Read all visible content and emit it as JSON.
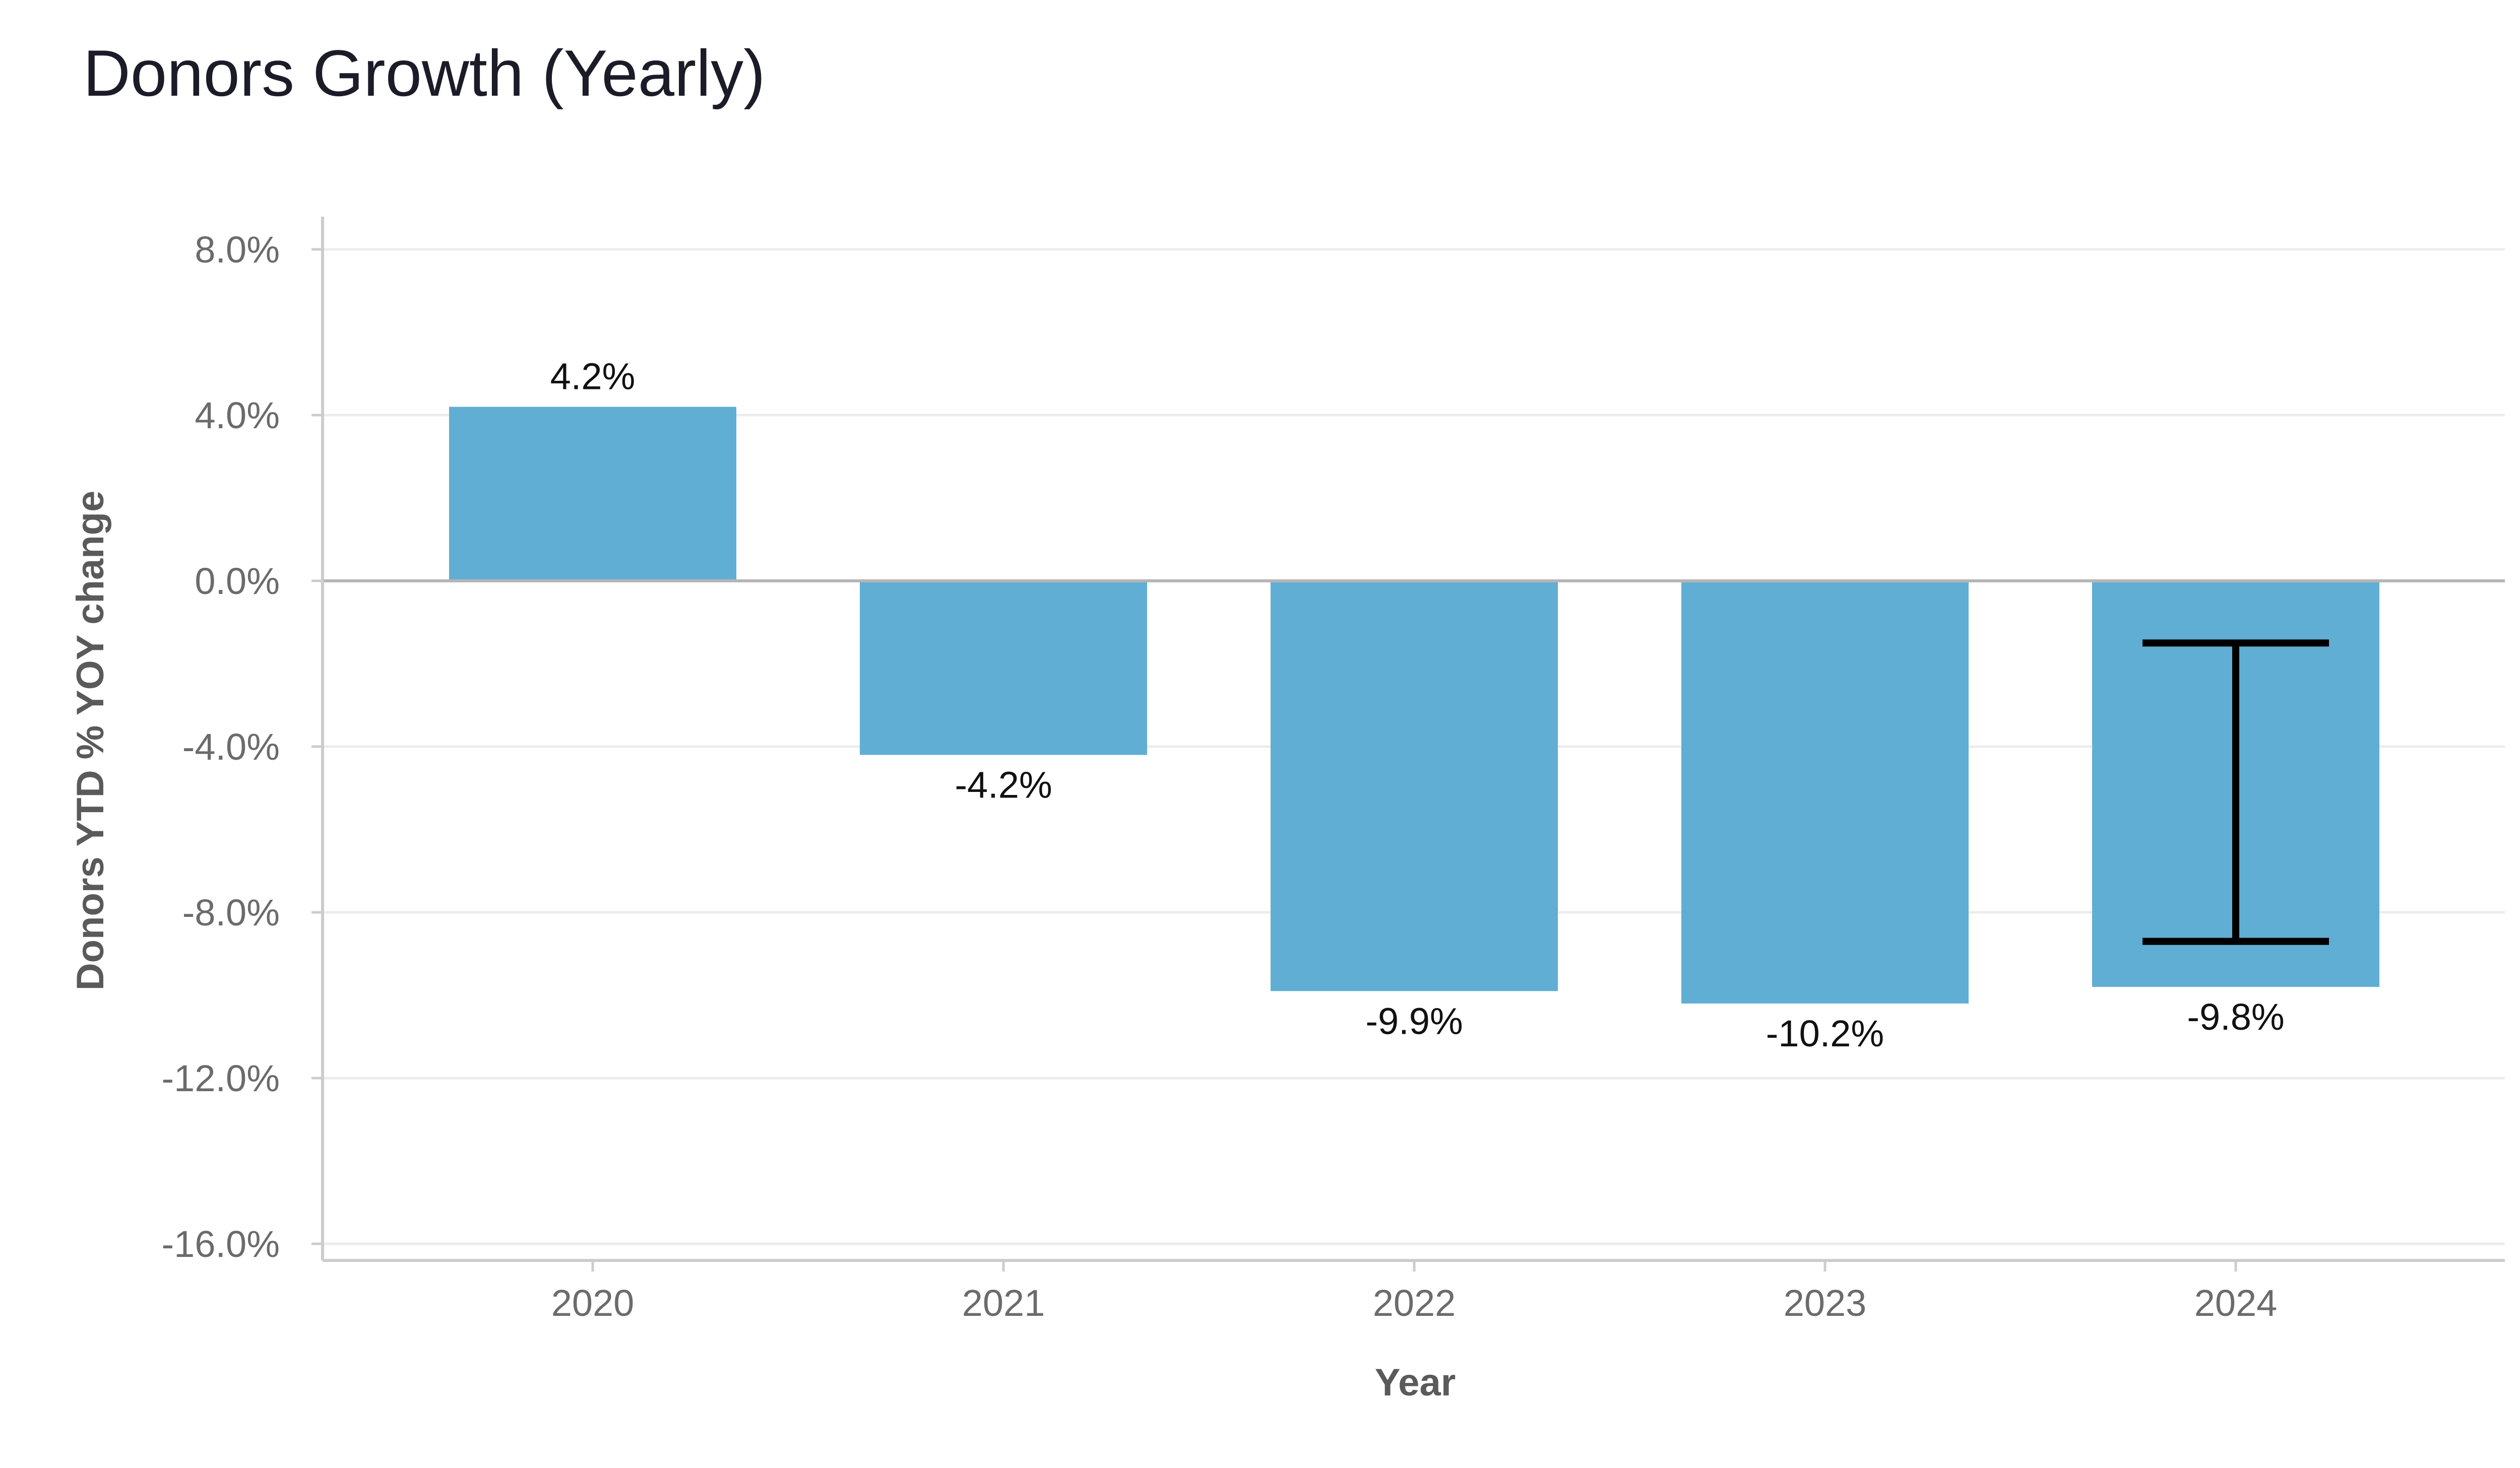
{
  "title": "Donors Growth (Yearly)",
  "chart_data": {
    "type": "bar",
    "title": "Donors Growth (Yearly)",
    "xlabel": "Year",
    "ylabel": "Donors YTD % YOY change",
    "categories": [
      "2020",
      "2021",
      "2022",
      "2023",
      "2024"
    ],
    "values": [
      4.2,
      -4.2,
      -9.9,
      -10.2,
      -9.8
    ],
    "data_labels": [
      "4.2%",
      "-4.2%",
      "-9.9%",
      "-10.2%",
      "-9.8%"
    ],
    "error_bars": [
      {
        "category": "2024",
        "low": -8.7,
        "high": -1.5
      }
    ],
    "ylim": [
      -16.0,
      8.0
    ],
    "yticks": [
      8.0,
      4.0,
      0.0,
      -4.0,
      -8.0,
      -12.0,
      -16.0
    ],
    "ytick_labels": [
      "8.0%",
      "4.0%",
      "0.0%",
      "-4.0%",
      "-8.0%",
      "-12.0%",
      "-16.0%"
    ],
    "grid": true,
    "legend": "none",
    "colors": {
      "bar": "#60aed3",
      "error_bar": "#000000",
      "grid": "#ececec",
      "zero_line": "#b5b5b5",
      "axis": "#cccccc"
    }
  }
}
